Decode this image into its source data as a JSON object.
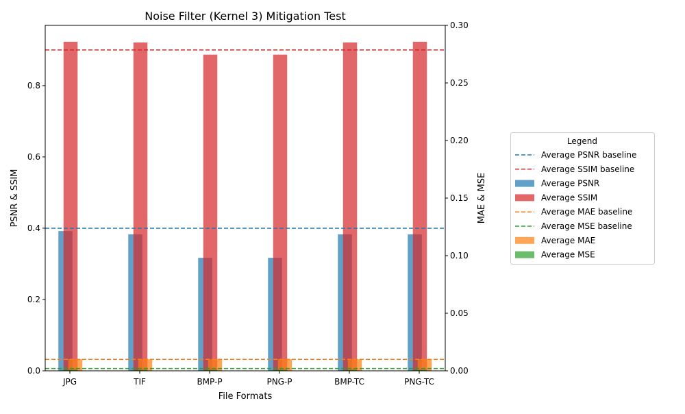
{
  "chart_data": {
    "type": "bar",
    "title": "Noise Filter (Kernel 3) Mitigation Test",
    "xlabel": "File Formats",
    "ylabel_left": "PSNR & SSIM",
    "ylabel_right": "MAE & MSE",
    "categories": [
      "JPG",
      "TIF",
      "BMP-P",
      "PNG-P",
      "BMP-TC",
      "PNG-TC"
    ],
    "ylim_left": [
      0,
      0.969
    ],
    "ylim_right": [
      0,
      0.3
    ],
    "yticks_left": [
      "0.0",
      "0.2",
      "0.4",
      "0.6",
      "0.8"
    ],
    "yticks_right": [
      "0.00",
      "0.05",
      "0.10",
      "0.15",
      "0.20",
      "0.25",
      "0.30"
    ],
    "series": [
      {
        "name": "Average PSNR",
        "axis": "left",
        "color": "#1f77b4",
        "values": [
          0.392,
          0.383,
          0.317,
          0.317,
          0.383,
          0.383
        ]
      },
      {
        "name": "Average SSIM",
        "axis": "left",
        "color": "#d62728",
        "values": [
          0.923,
          0.921,
          0.887,
          0.887,
          0.921,
          0.923
        ]
      },
      {
        "name": "Average MAE",
        "axis": "right",
        "color": "#ff7f0e",
        "values": [
          0.01,
          0.01,
          0.01,
          0.01,
          0.01,
          0.01
        ]
      },
      {
        "name": "Average MSE",
        "axis": "right",
        "color": "#2ca02c",
        "values": [
          0.001,
          0.001,
          0.001,
          0.001,
          0.001,
          0.001
        ]
      }
    ],
    "baselines": [
      {
        "name": "Average PSNR baseline",
        "axis": "left",
        "color": "#1f77b4",
        "value": 0.4
      },
      {
        "name": "Average SSIM baseline",
        "axis": "left",
        "color": "#d62728",
        "value": 0.9
      },
      {
        "name": "Average MAE baseline",
        "axis": "right",
        "color": "#ff7f0e",
        "value": 0.01
      },
      {
        "name": "Average MSE baseline",
        "axis": "right",
        "color": "#2ca02c",
        "value": 0.002
      }
    ],
    "legend": {
      "title": "Legend",
      "placement": "right",
      "entries": [
        "Average PSNR baseline",
        "Average SSIM baseline",
        "Average PSNR",
        "Average SSIM",
        "Average MAE baseline",
        "Average MSE baseline",
        "Average MAE",
        "Average MSE"
      ]
    }
  }
}
